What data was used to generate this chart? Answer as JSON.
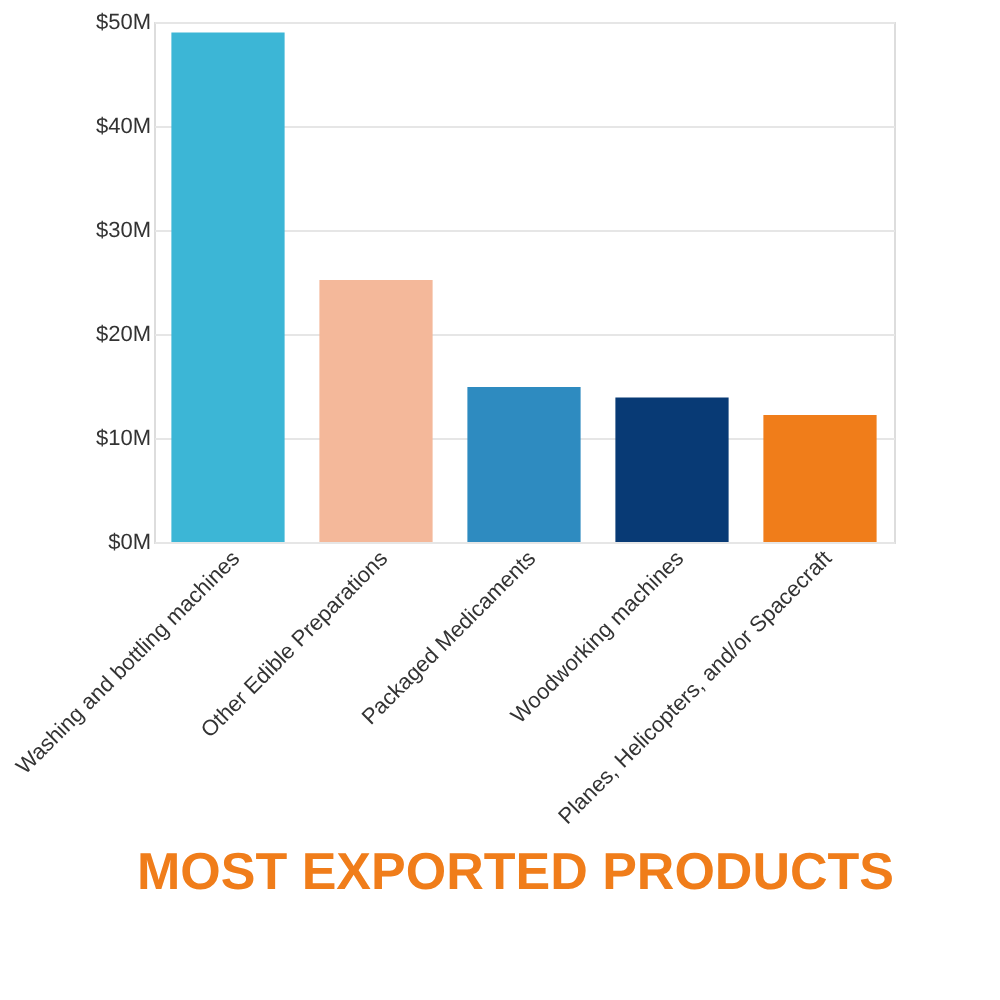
{
  "chart_data": {
    "type": "bar",
    "title": "MOST EXPORTED PRODUCTS",
    "categories": [
      "Washing and bottling machines",
      "Other Edible Preparations",
      "Packaged Medicaments",
      "Woodworking machines",
      "Planes, Helicopters, and/or Spacecraft"
    ],
    "values": [
      49,
      25.2,
      14.9,
      13.9,
      12.2
    ],
    "colors": [
      "#3cb6d6",
      "#f4b89a",
      "#2e8bc0",
      "#083a75",
      "#f07d1a"
    ],
    "ylim": [
      0,
      50
    ],
    "yticks": [
      {
        "value": 0,
        "label": "$0M"
      },
      {
        "value": 10,
        "label": "$10M"
      },
      {
        "value": 20,
        "label": "$20M"
      },
      {
        "value": 30,
        "label": "$30M"
      },
      {
        "value": 40,
        "label": "$40M"
      },
      {
        "value": 50,
        "label": "$50M"
      }
    ],
    "grid": "y",
    "legend": false
  }
}
